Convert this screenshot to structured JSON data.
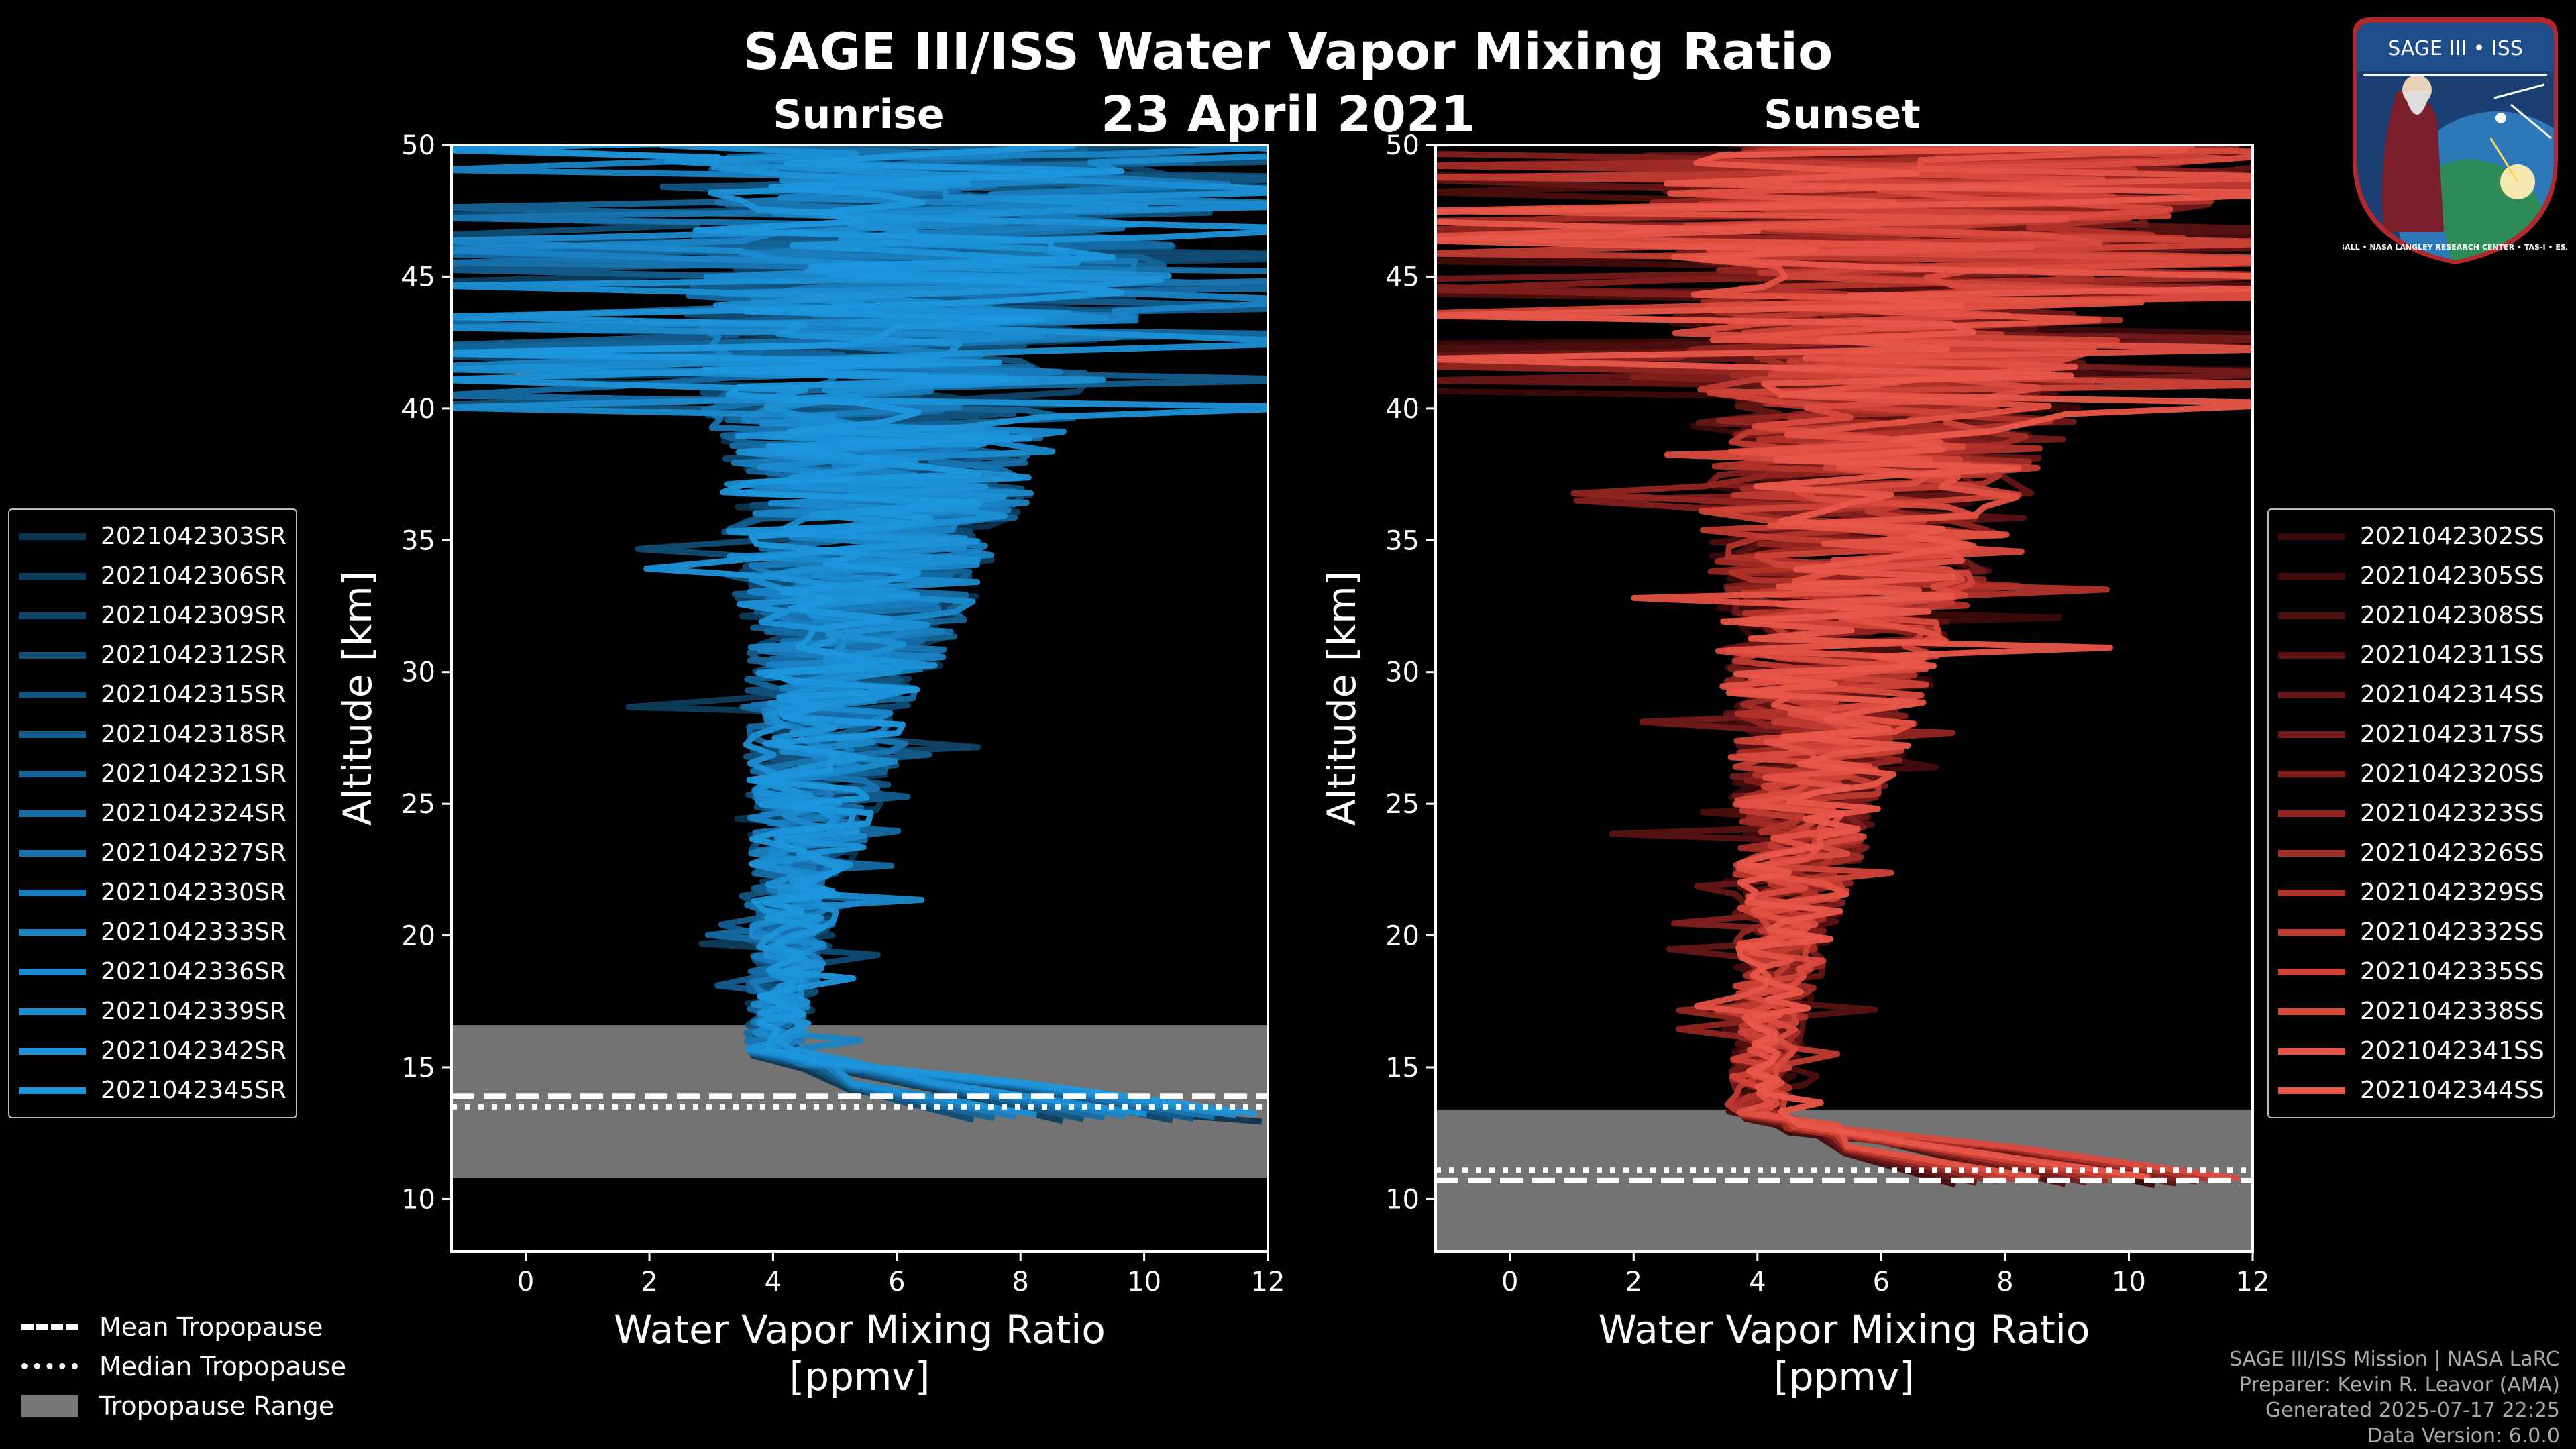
{
  "figure": {
    "title": "SAGE III/ISS Water Vapor Mixing Ratio",
    "date": "23 April 2021"
  },
  "chart_data": [
    {
      "type": "line",
      "panel_title": "Sunrise",
      "xlabel_line1": "Water Vapor Mixing Ratio",
      "xlabel_line2": "[ppmv]",
      "ylabel": "Altitude [km]",
      "xlim": [
        -1.2,
        12
      ],
      "ylim": [
        8,
        50
      ],
      "xticks": [
        0,
        2,
        4,
        6,
        8,
        10,
        12
      ],
      "yticks": [
        10,
        15,
        20,
        25,
        30,
        35,
        40,
        45,
        50
      ],
      "series_color": "#1f8fd6",
      "series": [
        {
          "name": "2021042303SR"
        },
        {
          "name": "2021042306SR"
        },
        {
          "name": "2021042309SR"
        },
        {
          "name": "2021042312SR"
        },
        {
          "name": "2021042315SR"
        },
        {
          "name": "2021042318SR"
        },
        {
          "name": "2021042321SR"
        },
        {
          "name": "2021042324SR"
        },
        {
          "name": "2021042327SR"
        },
        {
          "name": "2021042330SR"
        },
        {
          "name": "2021042333SR"
        },
        {
          "name": "2021042336SR"
        },
        {
          "name": "2021042339SR"
        },
        {
          "name": "2021042342SR"
        },
        {
          "name": "2021042345SR"
        }
      ],
      "tropopause": {
        "mean_km": 13.9,
        "median_km": 13.5,
        "range_km": [
          10.8,
          16.6
        ]
      }
    },
    {
      "type": "line",
      "panel_title": "Sunset",
      "xlabel_line1": "Water Vapor Mixing Ratio",
      "xlabel_line2": "[ppmv]",
      "ylabel": "Altitude [km]",
      "xlim": [
        -1.2,
        12
      ],
      "ylim": [
        8,
        50
      ],
      "xticks": [
        0,
        2,
        4,
        6,
        8,
        10,
        12
      ],
      "yticks": [
        10,
        15,
        20,
        25,
        30,
        35,
        40,
        45,
        50
      ],
      "series_color": "#e8574a",
      "series": [
        {
          "name": "2021042302SS"
        },
        {
          "name": "2021042305SS"
        },
        {
          "name": "2021042308SS"
        },
        {
          "name": "2021042311SS"
        },
        {
          "name": "2021042314SS"
        },
        {
          "name": "2021042317SS"
        },
        {
          "name": "2021042320SS"
        },
        {
          "name": "2021042323SS"
        },
        {
          "name": "2021042326SS"
        },
        {
          "name": "2021042329SS"
        },
        {
          "name": "2021042332SS"
        },
        {
          "name": "2021042335SS"
        },
        {
          "name": "2021042338SS"
        },
        {
          "name": "2021042341SS"
        },
        {
          "name": "2021042344SS"
        }
      ],
      "tropopause": {
        "mean_km": 10.7,
        "median_km": 11.1,
        "range_km": [
          8.0,
          13.4
        ]
      }
    }
  ],
  "bottom_legend": {
    "mean": "Mean Tropopause",
    "median": "Median Tropopause",
    "range": "Tropopause Range"
  },
  "credits": {
    "line1": "SAGE III/ISS Mission | NASA LaRC",
    "line2": "Preparer: Kevin R. Leavor (AMA)",
    "line3": "Generated 2025-07-17 22:25",
    "line4": "Data Version: 6.0.0"
  },
  "logo": {
    "top_text": "SAGE III • ISS",
    "ring_text": "BALL • NASA LANGLEY RESEARCH CENTER • TAS-I • ESA"
  },
  "colors": {
    "sunrise_palette": [
      "#0b3550",
      "#0d3d5c",
      "#0f4468",
      "#104c74",
      "#125480",
      "#135c8c",
      "#156498",
      "#166ca4",
      "#1874b0",
      "#197cbc",
      "#1a84c6",
      "#1b8ace",
      "#1c8fd4",
      "#1d92d8",
      "#1e96dc"
    ],
    "sunset_palette": [
      "#3a0a0a",
      "#420c0c",
      "#4c0f0f",
      "#581212",
      "#651616",
      "#731a1a",
      "#821f1d",
      "#922521",
      "#a22c26",
      "#b2332b",
      "#c13b31",
      "#cf4338",
      "#da4b3f",
      "#e35245",
      "#e8574a"
    ]
  }
}
